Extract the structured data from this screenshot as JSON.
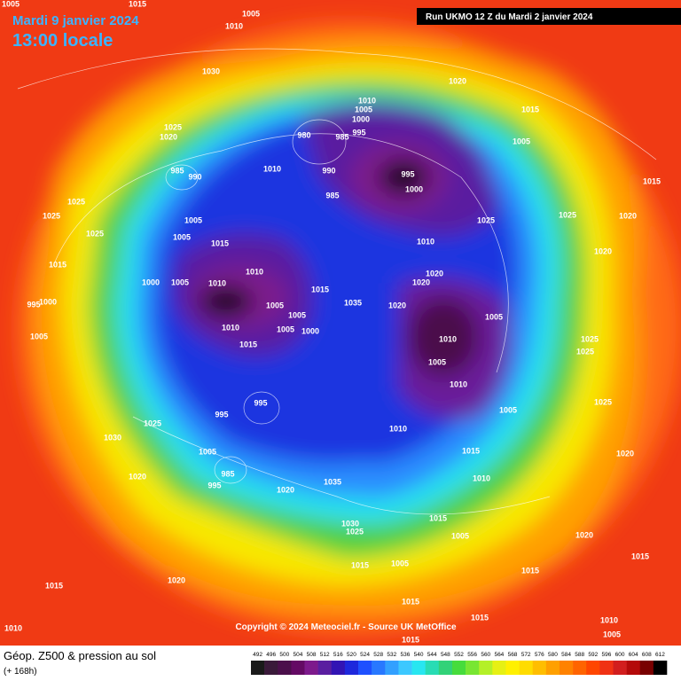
{
  "header": {
    "date": "Mardi 9 janvier 2024",
    "time": "13:00 locale"
  },
  "run": "Run UKMO 12 Z du Mardi 2 janvier 2024",
  "copyright": "Copyright © 2024 Meteociel.fr - Source UK MetOffice",
  "caption": {
    "title": "Géop. Z500 & pression au sol",
    "lead": "(+ 168h)"
  },
  "colorbar": {
    "ticks": [
      492,
      496,
      500,
      504,
      508,
      512,
      516,
      520,
      524,
      528,
      532,
      536,
      540,
      544,
      548,
      552,
      556,
      560,
      564,
      568,
      572,
      576,
      580,
      584,
      588,
      592,
      596,
      600,
      604,
      608,
      612
    ],
    "colors": [
      "#1a1a1a",
      "#3a1a3a",
      "#4b0f4b",
      "#640a64",
      "#7d1a8c",
      "#5a1ea0",
      "#3214b4",
      "#1e28dc",
      "#1e50ff",
      "#2878ff",
      "#32a0ff",
      "#3cc8ff",
      "#28e6f0",
      "#28dcb4",
      "#32d278",
      "#46dc3c",
      "#78e632",
      "#b4f028",
      "#e6f014",
      "#fff000",
      "#ffdc00",
      "#ffbe00",
      "#ffa000",
      "#ff8200",
      "#ff6400",
      "#ff4600",
      "#f03214",
      "#d21e1e",
      "#b40a0a",
      "#780000",
      "#000000"
    ]
  },
  "isobar_labels": [
    1005,
    1010,
    1015,
    1005,
    1030,
    1020,
    1010,
    1005,
    1000,
    995,
    980,
    985,
    1025,
    1020,
    985,
    990,
    1010,
    990,
    995,
    1000,
    985,
    1015,
    1005,
    1015,
    1025,
    1025,
    1025,
    1005,
    1005,
    1015,
    1025,
    1025,
    1020,
    1010,
    1020,
    1015,
    1000,
    1005,
    1010,
    1010,
    1020,
    1020,
    1015,
    1035,
    1020,
    1005,
    1005,
    1005,
    1010,
    1005,
    1000,
    1015,
    1010,
    1005,
    1010,
    1025,
    1025,
    1005,
    1000,
    995,
    995,
    995,
    1025,
    1030,
    1010,
    1005,
    1015,
    1005,
    985,
    995,
    1020,
    1020,
    1035,
    1010,
    1025,
    1020,
    1030,
    1025,
    1015,
    1005,
    1015,
    1005,
    1020,
    1015,
    1015,
    1020,
    1015,
    1015,
    1015,
    1015,
    1010,
    1005,
    1010,
    1005
  ]
}
